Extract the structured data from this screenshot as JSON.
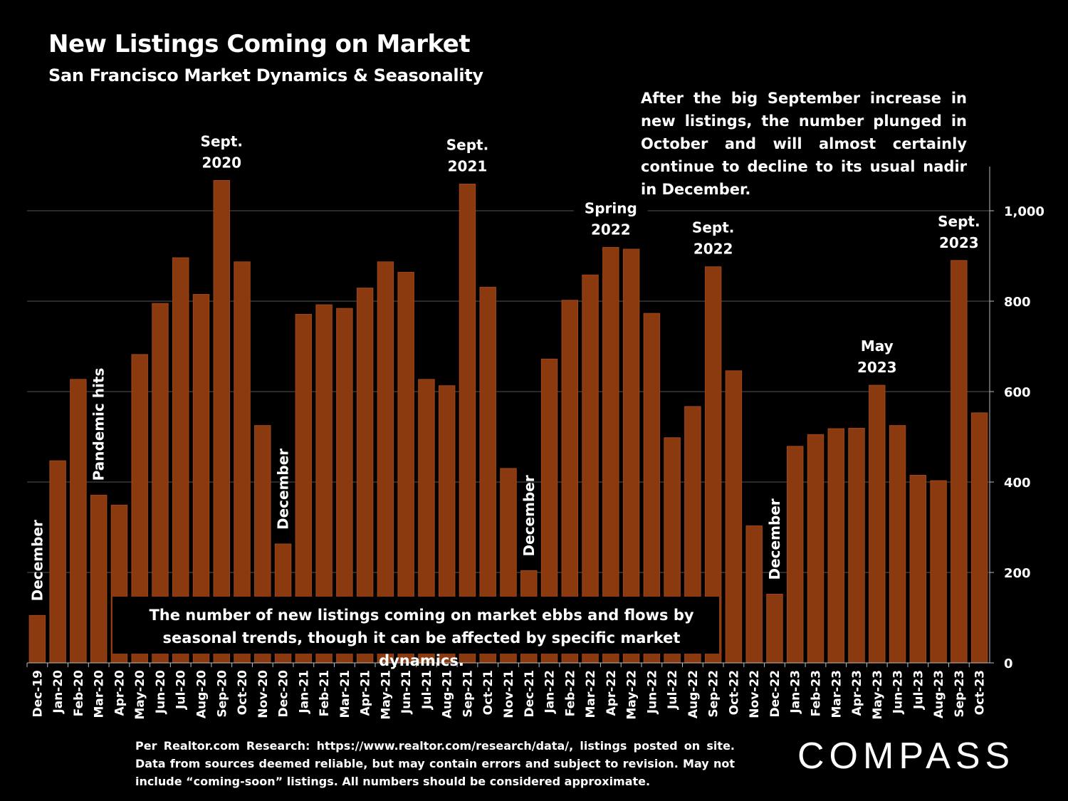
{
  "header": {
    "title": "New Listings Coming on Market",
    "subtitle": "San Francisco Market Dynamics & Seasonality"
  },
  "note": "After the big September increase in new listings, the number plunged in October and will almost certainly continue to decline to its usual nadir in December.",
  "callout": "The number of new listings coming on market ebbs and flows by seasonal trends, though it can be affected by specific market dynamics.",
  "source": "Per Realtor.com Research: https://www.realtor.com/research/data/, listings posted on site. Data from sources deemed reliable, but may contain errors and subject to revision. May not include “coming-soon” listings. All numbers should be considered approximate.",
  "logo": "COMPASS",
  "colors": {
    "bar": "#8B3A0F",
    "bar_edge": "#A0461A",
    "background": "#000000",
    "grid": "#555555"
  },
  "chart_data": {
    "type": "bar",
    "title": "New Listings Coming on Market",
    "subtitle": "San Francisco Market Dynamics & Seasonality",
    "categories": [
      "Dec-19",
      "Jan-20",
      "Feb-20",
      "Mar-20",
      "Apr-20",
      "May-20",
      "Jun-20",
      "Jul-20",
      "Aug-20",
      "Sep-20",
      "Oct-20",
      "Nov-20",
      "Dec-20",
      "Jan-21",
      "Feb-21",
      "Mar-21",
      "Apr-21",
      "May-21",
      "Jun-21",
      "Jul-21",
      "Aug-21",
      "Sep-21",
      "Oct-21",
      "Nov-21",
      "Dec-21",
      "Jan-22",
      "Feb-22",
      "Mar-22",
      "Apr-22",
      "May-22",
      "Jun-22",
      "Jul-22",
      "Aug-22",
      "Sep-22",
      "Oct-22",
      "Nov-22",
      "Dec-22",
      "Jan-23",
      "Feb-23",
      "Mar-23",
      "Apr-23",
      "May-23",
      "Jun-23",
      "Jul-23",
      "Aug-23",
      "Sep-23",
      "Oct-23"
    ],
    "values": [
      105,
      447,
      627,
      371,
      349,
      682,
      795,
      896,
      815,
      1067,
      887,
      525,
      263,
      771,
      792,
      784,
      829,
      887,
      864,
      627,
      613,
      1059,
      831,
      430,
      204,
      672,
      802,
      858,
      919,
      915,
      773,
      498,
      567,
      876,
      646,
      303,
      152,
      479,
      505,
      518,
      519,
      614,
      525,
      415,
      403,
      890,
      553
    ],
    "ylim": [
      0,
      1100
    ],
    "yticks": [
      0,
      200,
      400,
      600,
      800,
      1000
    ],
    "ytick_labels": [
      "0",
      "200",
      "400",
      "600",
      "800",
      "1,000"
    ],
    "y_axis_side": "right",
    "grid": true,
    "legend": "none",
    "annotations": [
      {
        "category": "Dec-19",
        "text": "December",
        "vertical": true
      },
      {
        "category": "Mar-20",
        "text": "Pandemic hits",
        "vertical": true
      },
      {
        "category": "Sep-20",
        "text": "Sept. 2020",
        "lines": [
          "Sept.",
          "2020"
        ]
      },
      {
        "category": "Dec-20",
        "text": "December",
        "vertical": true
      },
      {
        "category": "Sep-21",
        "text": "Sept. 2021",
        "lines": [
          "Sept.",
          "2021"
        ]
      },
      {
        "category": "Dec-21",
        "text": "December",
        "vertical": true
      },
      {
        "category": "Apr-22",
        "text": "Spring 2022",
        "lines": [
          "Spring",
          "2022"
        ]
      },
      {
        "category": "Sep-22",
        "text": "Sept. 2022",
        "lines": [
          "Sept.",
          "2022"
        ]
      },
      {
        "category": "Dec-22",
        "text": "December",
        "vertical": true
      },
      {
        "category": "May-23",
        "text": "May 2023",
        "lines": [
          "May",
          "2023"
        ]
      },
      {
        "category": "Sep-23",
        "text": "Sept. 2023",
        "lines": [
          "Sept.",
          "2023"
        ]
      }
    ]
  }
}
